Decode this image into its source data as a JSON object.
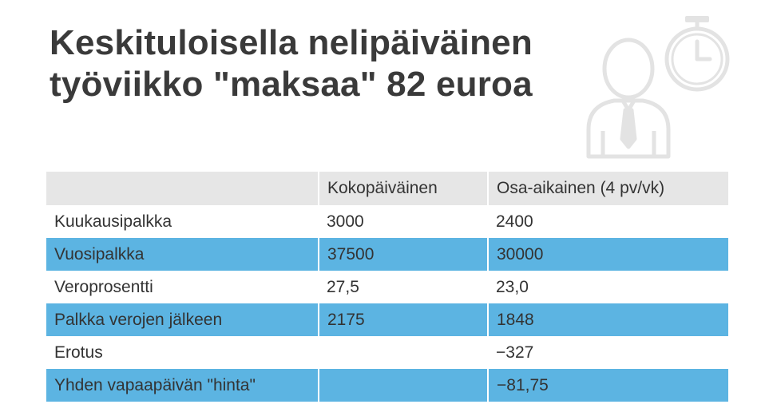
{
  "title": {
    "line1": "Keskituloisella nelipäiväinen",
    "line2": "työviikko \"maksaa\" 82 euroa"
  },
  "illustration": {
    "icons": [
      "person-with-tie-icon",
      "stopwatch-icon"
    ],
    "color": "#e3e3e3"
  },
  "table": {
    "columns": [
      "",
      "Kokopäiväinen",
      "Osa-aikainen (4 pv/vk)"
    ],
    "rows": [
      [
        "Kuukausipalkka",
        "3000",
        "2400"
      ],
      [
        "Vuosipalkka",
        "37500",
        "30000"
      ],
      [
        "Veroprosentti",
        "27,5",
        "23,0"
      ],
      [
        "Palkka verojen jälkeen",
        "2175",
        "1848"
      ],
      [
        "Erotus",
        "",
        "−327"
      ],
      [
        "Yhden vapaapäivän \"hinta\"",
        "",
        "−81,75"
      ]
    ]
  },
  "colors": {
    "title": "#3a3a3a",
    "header_bg": "#e6e6e6",
    "stripe_bg": "#5cb4e2",
    "text": "#333333"
  }
}
